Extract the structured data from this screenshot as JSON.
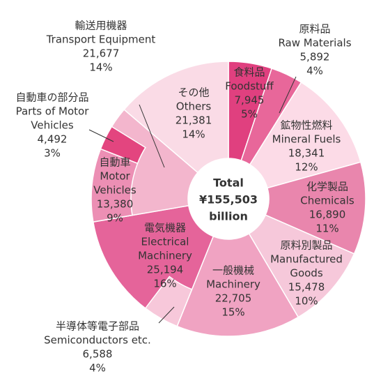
{
  "chart_data": {
    "type": "donut",
    "title_lines": [
      "Total",
      "¥155,503",
      "billion"
    ],
    "segments": [
      {
        "name_ja": "食料品",
        "name_en": [
          "Foodstuff"
        ],
        "value": 7945,
        "value_label": "7,945",
        "share_label": "5%",
        "color": "#e0407f"
      },
      {
        "name_ja": "原料品",
        "name_en": [
          "Raw Materials"
        ],
        "value": 5892,
        "value_label": "5,892",
        "share_label": "4%",
        "color": "#e8679a"
      },
      {
        "name_ja": "鉱物性燃料",
        "name_en": [
          "Mineral Fuels"
        ],
        "value": 18341,
        "value_label": "18,341",
        "share_label": "12%",
        "color": "#fcdbe7"
      },
      {
        "name_ja": "化学製品",
        "name_en": [
          "Chemicals"
        ],
        "value": 16890,
        "value_label": "16,890",
        "share_label": "11%",
        "color": "#e986ad"
      },
      {
        "name_ja": "原料別製品",
        "name_en": [
          "Manufactured",
          "Goods"
        ],
        "value": 15478,
        "value_label": "15,478",
        "share_label": "10%",
        "color": "#f6c8da"
      },
      {
        "name_ja": "一般機械",
        "name_en": [
          "Machinery"
        ],
        "value": 22705,
        "value_label": "22,705",
        "share_label": "15%",
        "color": "#f0a3c2"
      },
      {
        "name_ja": "電気機器",
        "name_en": [
          "Electrical",
          "Machinery"
        ],
        "value": 25194,
        "value_label": "25,194",
        "share_label": "16%",
        "color": "#e5649a",
        "children": [
          {
            "name_ja": "半導体等電子部品",
            "name_en": [
              "Semiconductors etc."
            ],
            "value": 6588,
            "value_label": "6,588",
            "share_label": "4%",
            "color": "#f7c8da"
          }
        ]
      },
      {
        "name_ja": "輸送用機器",
        "name_en": [
          "Transport Equipment"
        ],
        "value": 21677,
        "value_label": "21,677",
        "share_label": "14%",
        "color": "#f3b6cd",
        "children": [
          {
            "name_ja": "自動車",
            "name_en": [
              "Motor",
              "Vehicles"
            ],
            "value": 13380,
            "value_label": "13,380",
            "share_label": "9%",
            "color": "#ec8fb4"
          },
          {
            "name_ja": "自動車の部分品",
            "name_en": [
              "Parts of Motor",
              "Vehicles"
            ],
            "value": 4492,
            "value_label": "4,492",
            "share_label": "3%",
            "color": "#e3457f"
          }
        ]
      },
      {
        "name_ja": "その他",
        "name_en": [
          "Others"
        ],
        "value": 21381,
        "value_label": "21,381",
        "share_label": "14%",
        "color": "#fadbe6"
      }
    ]
  }
}
